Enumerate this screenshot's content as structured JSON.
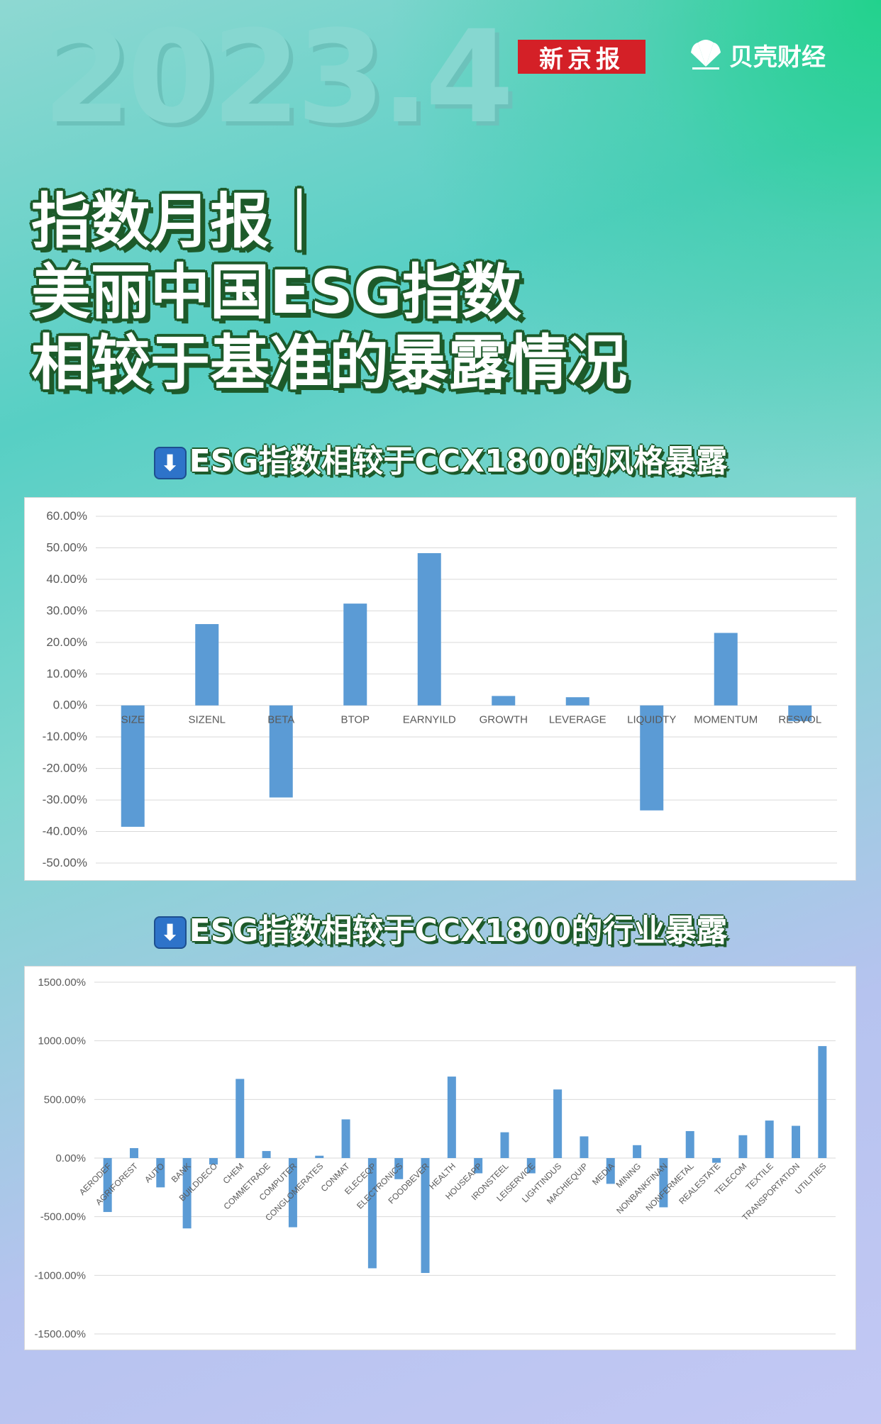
{
  "header": {
    "year": "2023.4",
    "brand_xjb": "新京报",
    "brand_bk": "贝壳财经"
  },
  "title": {
    "line1": "指数月报｜",
    "line2": "美丽中国ESG指数",
    "line3": "相较于基准的暴露情况"
  },
  "sections": {
    "style_heading": "ESG指数相较于CCX1800的风格暴露",
    "industry_heading": "ESG指数相较于CCX1800的行业暴露"
  },
  "colors": {
    "bar": "#5b9bd5",
    "grid": "#d9d9d9",
    "axis_text": "#595959"
  },
  "chart_data": [
    {
      "type": "bar",
      "title": "",
      "xlabel": "",
      "ylabel": "",
      "ylim": [
        -50,
        60
      ],
      "yticks": [
        60,
        50,
        40,
        30,
        20,
        10,
        0,
        -10,
        -20,
        -30,
        -40,
        -50
      ],
      "ytick_labels": [
        "60.00%",
        "50.00%",
        "40.00%",
        "30.00%",
        "20.00%",
        "10.00%",
        "0.00%",
        "-10.00%",
        "-20.00%",
        "-30.00%",
        "-40.00%",
        "-50.00%"
      ],
      "grid": true,
      "categories": [
        "SIZE",
        "SIZENL",
        "BETA",
        "BTOP",
        "EARNYILD",
        "GROWTH",
        "LEVERAGE",
        "LIQUIDTY",
        "MOMENTUM",
        "RESVOL"
      ],
      "values": [
        -38.5,
        25.8,
        -29.2,
        32.3,
        48.3,
        3.0,
        2.6,
        -33.3,
        23.0,
        -5.0
      ]
    },
    {
      "type": "bar",
      "title": "",
      "xlabel": "",
      "ylabel": "",
      "ylim": [
        -1500,
        1500
      ],
      "yticks": [
        1500,
        1000,
        500,
        0,
        -500,
        -1000,
        -1500
      ],
      "ytick_labels": [
        "1500.00%",
        "1000.00%",
        "500.00%",
        "0.00%",
        "-500.00%",
        "-1000.00%",
        "-1500.00%"
      ],
      "grid": true,
      "categories": [
        "AERODEF",
        "AGRIFOREST",
        "AUTO",
        "BANK",
        "BUILDDECO",
        "CHEM",
        "COMMETRADE",
        "COMPUTER",
        "CONGLOMERATES",
        "CONMAT",
        "ELECEQP",
        "ELECTRONICS",
        "FOODBEVER",
        "HEALTH",
        "HOUSEAPP",
        "IRONSTEEL",
        "LEISERVICE",
        "LIGHTINDUS",
        "MACHIEQUIP",
        "MEDIA",
        "MINING",
        "NONBANKFINAN",
        "NONFERMETAL",
        "REALESTATE",
        "TELECOM",
        "TEXTILE",
        "TRANSPORTATION",
        "UTILITIES"
      ],
      "values": [
        -460,
        85,
        -250,
        -600,
        -55,
        675,
        60,
        -590,
        20,
        330,
        -940,
        -180,
        -980,
        695,
        -130,
        220,
        -130,
        585,
        185,
        -220,
        110,
        -420,
        230,
        -40,
        195,
        320,
        275,
        955
      ]
    }
  ]
}
